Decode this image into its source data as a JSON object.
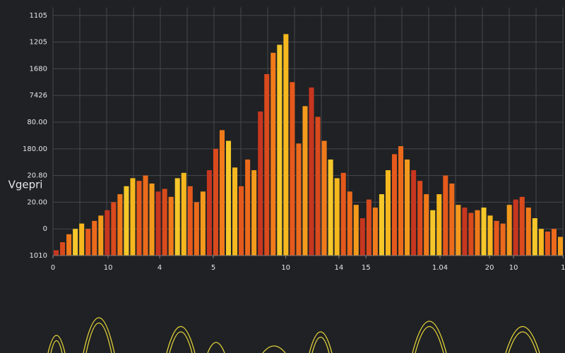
{
  "chart_data": {
    "type": "histogram",
    "y_label": "Vgepri",
    "bins": [
      0,
      1.25,
      2.5,
      3.75,
      5,
      6.25,
      7.5,
      8.75,
      10,
      11.25,
      12.5,
      13.75,
      15,
      16.25,
      17.5,
      18.75,
      20,
      21.25,
      22.5,
      23.75,
      25,
      26.25,
      27.5,
      28.75,
      30,
      31.25,
      32.5,
      33.75,
      35,
      36.25,
      37.5,
      38.75,
      40,
      41.25,
      42.5,
      43.75,
      45,
      46.25,
      47.5,
      48.75,
      50,
      51.25,
      52.5,
      53.75,
      55,
      56.25,
      57.5,
      58.75,
      60,
      61.25,
      62.5,
      63.75,
      65,
      66.25,
      67.5,
      68.75,
      70,
      71.25,
      72.5,
      73.75,
      75,
      76.25,
      77.5,
      78.75,
      80,
      81.25,
      82.5,
      83.75,
      85,
      86.25,
      87.5,
      88.75,
      90,
      91.25,
      92.5,
      93.75,
      95,
      96.25,
      97.5,
      98.75,
      100
    ],
    "values": [
      0.2,
      0.5,
      0.8,
      1.0,
      1.2,
      1.0,
      1.3,
      1.5,
      1.7,
      2.0,
      2.3,
      2.6,
      2.9,
      2.8,
      3.0,
      2.7,
      2.4,
      2.5,
      2.2,
      2.9,
      3.1,
      2.6,
      2.0,
      2.4,
      3.2,
      4.0,
      4.7,
      4.3,
      3.3,
      2.6,
      3.6,
      3.2,
      5.4,
      6.8,
      7.6,
      7.9,
      8.3,
      6.5,
      4.2,
      5.6,
      6.3,
      5.2,
      4.3,
      3.6,
      2.9,
      3.1,
      2.4,
      1.9,
      1.4,
      2.1,
      1.8,
      2.3,
      3.2,
      3.8,
      4.1,
      3.6,
      3.2,
      2.8,
      2.3,
      1.7,
      2.3,
      3.0,
      2.7,
      1.9,
      1.8,
      1.6,
      1.7,
      1.8,
      1.5,
      1.3,
      1.2,
      1.9,
      2.1,
      2.2,
      1.8,
      1.4,
      1.0,
      0.9,
      1.0,
      0.7
    ],
    "colors": [
      "#c7361f",
      "#e5591c",
      "#f07a1a",
      "#f39a1c",
      "#f6b81e",
      "#d94a1d",
      "#eb6a1b",
      "#f5c72a"
    ],
    "xlim": [
      0,
      100
    ],
    "xticks": [
      {
        "value": 0,
        "label": "0"
      },
      {
        "value": 10.8,
        "label": "10"
      },
      {
        "value": 20.9,
        "label": "4"
      },
      {
        "value": 31.4,
        "label": "5"
      },
      {
        "value": 45.6,
        "label": "10"
      },
      {
        "value": 56,
        "label": "14"
      },
      {
        "value": 61.3,
        "label": "15"
      },
      {
        "value": 75.8,
        "label": "1.04"
      },
      {
        "value": 85.5,
        "label": "20"
      },
      {
        "value": 90.2,
        "label": "10"
      },
      {
        "value": 99.9,
        "label": "1"
      }
    ],
    "ylim": [
      0,
      9.3
    ],
    "yticks": [
      {
        "value": 0,
        "label": "1010"
      },
      {
        "value": 1,
        "label": "0"
      },
      {
        "value": 2,
        "label": "20.00"
      },
      {
        "value": 3,
        "label": "20.80"
      },
      {
        "value": 4,
        "label": "180.00"
      },
      {
        "value": 5,
        "label": "80.00"
      },
      {
        "value": 6,
        "label": "7426"
      },
      {
        "value": 7,
        "label": "1680"
      },
      {
        "value": 8,
        "label": "1205"
      },
      {
        "value": 9,
        "label": "1105"
      }
    ],
    "grid": true
  }
}
